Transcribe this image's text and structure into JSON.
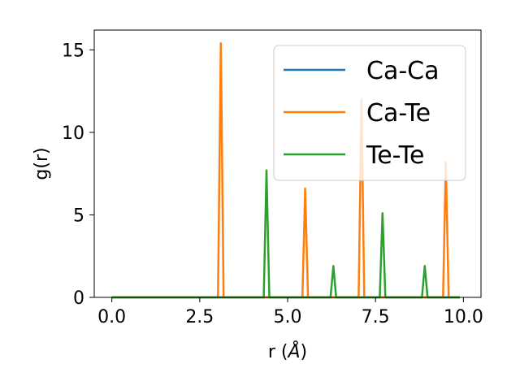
{
  "chart_data": {
    "type": "line",
    "title": "",
    "xlabel": "r (Å)",
    "xlabel_prefix": "r (",
    "xlabel_unit": "Å",
    "xlabel_suffix": ")",
    "ylabel": "g(r)",
    "xlim": [
      -0.5,
      10.5
    ],
    "ylim": [
      0,
      16.2
    ],
    "xticks": [
      0.0,
      2.5,
      5.0,
      7.5,
      10.0
    ],
    "xtick_labels": [
      "0.0",
      "2.5",
      "5.0",
      "7.5",
      "10.0"
    ],
    "yticks": [
      0,
      5,
      10,
      15
    ],
    "ytick_labels": [
      "0",
      "5",
      "10",
      "15"
    ],
    "grid": false,
    "legend_position": "top-right",
    "x_range": [
      0.0,
      9.9
    ],
    "series": [
      {
        "name": "Ca-Ca",
        "color": "#1f77b4",
        "peaks": []
      },
      {
        "name": "Ca-Te",
        "color": "#ff7f0e",
        "peaks": [
          {
            "x": 3.1,
            "y": 15.4
          },
          {
            "x": 5.5,
            "y": 6.6
          },
          {
            "x": 7.1,
            "y": 12.0
          },
          {
            "x": 9.5,
            "y": 8.2
          }
        ]
      },
      {
        "name": "Te-Te",
        "color": "#2ca02c",
        "peaks": [
          {
            "x": 4.4,
            "y": 7.7
          },
          {
            "x": 6.3,
            "y": 1.9
          },
          {
            "x": 7.7,
            "y": 5.1
          },
          {
            "x": 8.9,
            "y": 1.9
          }
        ]
      }
    ]
  }
}
